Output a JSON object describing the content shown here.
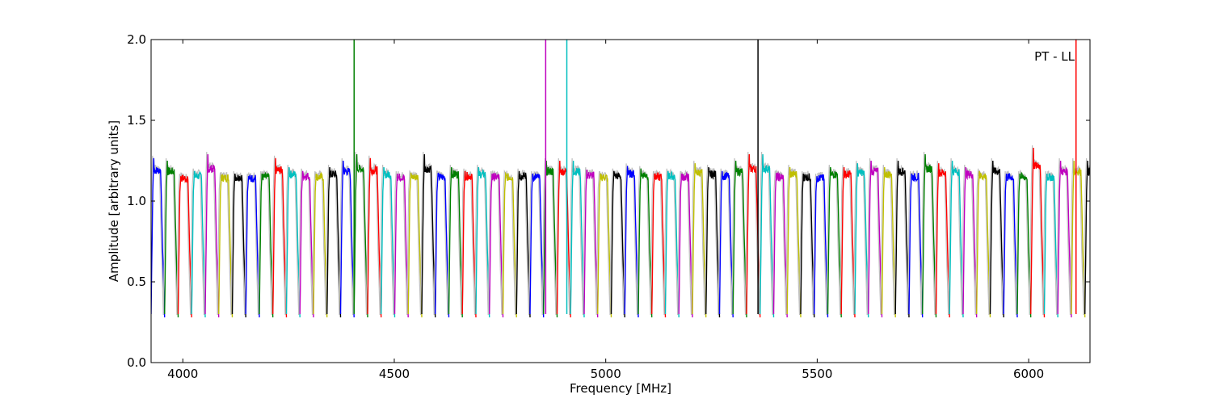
{
  "chart_data": {
    "type": "line",
    "title": "",
    "annotation": "PT - LL",
    "xlabel": "Frequency [MHz]",
    "ylabel": "Amplitude [arbitrary units]",
    "xlim": [
      3925,
      6145
    ],
    "ylim": [
      0.0,
      2.0
    ],
    "xticks": [
      4000,
      4500,
      5000,
      5500,
      6000
    ],
    "yticks": [
      0.0,
      0.5,
      1.0,
      1.5,
      2.0
    ],
    "xtick_labels": [
      "4000",
      "4500",
      "5000",
      "5500",
      "6000"
    ],
    "ytick_labels": [
      "0.0",
      "0.5",
      "1.0",
      "1.5",
      "2.0"
    ],
    "grid": false,
    "color_cycle": [
      "#0000ff",
      "#008000",
      "#ff0000",
      "#00bfbf",
      "#bf00bf",
      "#bfbf00",
      "#000000"
    ],
    "background_trace_color": "#bfbfbf",
    "band_width_mhz": 32,
    "band_starts_mhz": [
      3925,
      3957,
      3989,
      4021,
      4053,
      4085,
      4117,
      4149,
      4181,
      4213,
      4245,
      4277,
      4309,
      4341,
      4373,
      4405,
      4437,
      4469,
      4501,
      4533,
      4565,
      4597,
      4629,
      4661,
      4693,
      4725,
      4757,
      4789,
      4821,
      4853,
      4885,
      4917,
      4949,
      4981,
      5013,
      5045,
      5077,
      5109,
      5141,
      5173,
      5205,
      5237,
      5269,
      5301,
      5333,
      5365,
      5397,
      5429,
      5461,
      5493,
      5525,
      5557,
      5589,
      5621,
      5653,
      5685,
      5717,
      5749,
      5781,
      5813,
      5845,
      5877,
      5909,
      5941,
      5973,
      6005,
      6037,
      6069,
      6101,
      6133
    ],
    "band_peak_levels": [
      1.32,
      1.3,
      1.18,
      1.22,
      1.35,
      1.19,
      1.2,
      1.18,
      1.2,
      1.32,
      1.25,
      1.22,
      1.2,
      1.25,
      1.3,
      1.35,
      1.32,
      1.25,
      1.2,
      1.2,
      1.35,
      1.2,
      1.25,
      1.22,
      1.25,
      1.2,
      1.2,
      1.22,
      1.2,
      1.3,
      1.3,
      1.3,
      1.23,
      1.2,
      1.22,
      1.26,
      1.24,
      1.2,
      1.22,
      1.2,
      1.28,
      1.25,
      1.22,
      1.3,
      1.35,
      1.35,
      1.2,
      1.25,
      1.2,
      1.18,
      1.25,
      1.25,
      1.28,
      1.3,
      1.25,
      1.3,
      1.2,
      1.35,
      1.28,
      1.3,
      1.25,
      1.22,
      1.3,
      1.2,
      1.2,
      1.4,
      1.2,
      1.3,
      1.3,
      1.3
    ],
    "spikes": [
      {
        "x": 4405,
        "y": 2.0,
        "color": "#008000"
      },
      {
        "x": 4858,
        "y": 2.0,
        "color": "#bf00bf"
      },
      {
        "x": 4908,
        "y": 2.0,
        "color": "#00bfbf"
      },
      {
        "x": 5360,
        "y": 2.0,
        "color": "#000000"
      },
      {
        "x": 6112,
        "y": 2.0,
        "color": "#ff0000"
      }
    ]
  }
}
